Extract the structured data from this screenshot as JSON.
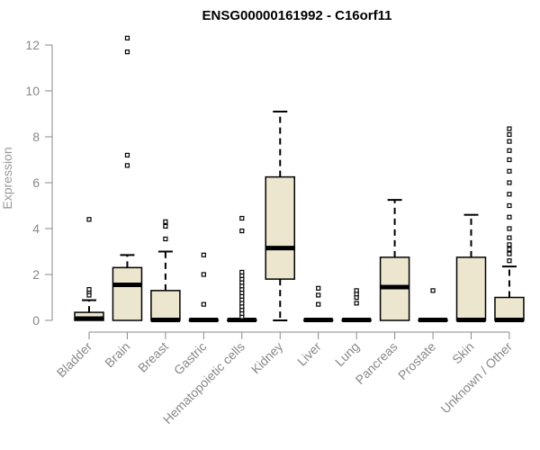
{
  "chart_data": {
    "type": "box",
    "title": "ENSG00000161992 - C16orf11",
    "ylabel": "Expression",
    "xlabel": "",
    "ylim": [
      0,
      12.5
    ],
    "yticks": [
      0,
      2,
      4,
      6,
      8,
      10,
      12
    ],
    "box_fill": "#ede6cf",
    "categories": [
      "Bladder",
      "Brain",
      "Breast",
      "Gastric",
      "Hematopoietic cells",
      "Kidney",
      "Liver",
      "Lung",
      "Pancreas",
      "Prostate",
      "Skin",
      "Unknown / Other"
    ],
    "boxes": [
      {
        "category": "Bladder",
        "min": 0,
        "q1": 0,
        "median": 0.08,
        "q3": 0.35,
        "max": 0.88,
        "outliers": [
          1.1,
          1.25,
          1.35,
          4.4
        ]
      },
      {
        "category": "Brain",
        "min": 0,
        "q1": 0,
        "median": 1.55,
        "q3": 2.3,
        "max": 2.85,
        "outliers": [
          6.75,
          7.2,
          11.7,
          12.3
        ]
      },
      {
        "category": "Breast",
        "min": 0,
        "q1": 0,
        "median": 0.02,
        "q3": 1.3,
        "max": 3.0,
        "outliers": [
          3.55,
          4.1,
          4.3
        ]
      },
      {
        "category": "Gastric",
        "min": 0,
        "q1": 0,
        "median": 0.02,
        "q3": 0.02,
        "max": 0.02,
        "outliers": [
          0.7,
          2.0,
          2.85
        ]
      },
      {
        "category": "Hematopoietic cells",
        "min": 0,
        "q1": 0,
        "median": 0.02,
        "q3": 0.02,
        "max": 0.02,
        "outliers": [
          0.15,
          0.3,
          0.45,
          0.6,
          0.75,
          0.9,
          1.05,
          1.2,
          1.35,
          1.5,
          1.65,
          1.8,
          1.95,
          2.1,
          3.9,
          4.45
        ]
      },
      {
        "category": "Kidney",
        "min": 0,
        "q1": 1.8,
        "median": 3.15,
        "q3": 6.25,
        "max": 9.1,
        "outliers": []
      },
      {
        "category": "Liver",
        "min": 0,
        "q1": 0,
        "median": 0.02,
        "q3": 0.02,
        "max": 0.02,
        "outliers": [
          0.7,
          1.1,
          1.4
        ]
      },
      {
        "category": "Lung",
        "min": 0,
        "q1": 0,
        "median": 0.02,
        "q3": 0.02,
        "max": 0.02,
        "outliers": [
          0.75,
          1.0,
          1.15,
          1.3
        ]
      },
      {
        "category": "Pancreas",
        "min": 0,
        "q1": 0,
        "median": 1.45,
        "q3": 2.75,
        "max": 5.25,
        "outliers": []
      },
      {
        "category": "Prostate",
        "min": 0,
        "q1": 0,
        "median": 0.02,
        "q3": 0.02,
        "max": 0.02,
        "outliers": [
          1.3
        ]
      },
      {
        "category": "Skin",
        "min": 0,
        "q1": 0,
        "median": 0.02,
        "q3": 2.75,
        "max": 4.6,
        "outliers": []
      },
      {
        "category": "Unknown / Other",
        "min": 0,
        "q1": 0,
        "median": 0.02,
        "q3": 1.0,
        "max": 2.35,
        "outliers": [
          2.6,
          2.9,
          3.1,
          3.3,
          3.6,
          4.0,
          4.5,
          5.0,
          5.5,
          6.0,
          6.5,
          7.0,
          7.4,
          7.8,
          8.1,
          8.35
        ]
      }
    ]
  }
}
